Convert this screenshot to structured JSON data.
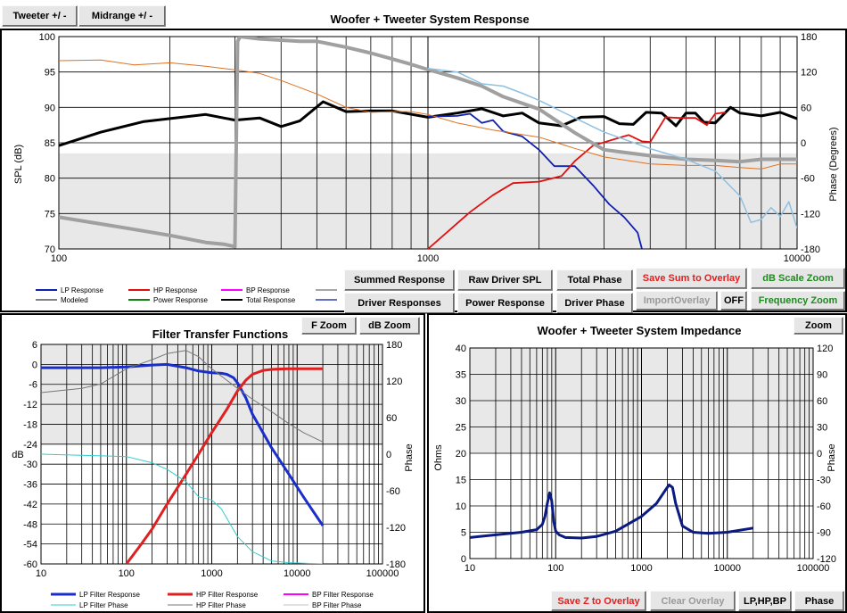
{
  "top_buttons": {
    "tweeter": "Tweeter +/ -",
    "midrange": "Midrange  +/ -"
  },
  "system_response": {
    "title": "Woofer + Tweeter    System Response",
    "ylabel": "SPL (dB)",
    "y2label": "Phase (Degrees)",
    "legend": {
      "lp": "LP Response",
      "hp": "HP Response",
      "bp": "BP Response",
      "modeled": "Modeled",
      "power": "Power Response",
      "total": "Total Response"
    },
    "buttons": {
      "summed": "Summed Response",
      "raw": "Raw Driver SPL",
      "total_phase": "Total Phase",
      "save_sum": "Save Sum to Overlay",
      "db_zoom": "dB Scale Zoom",
      "driver_resp": "Driver Responses",
      "power_resp": "Power Response",
      "driver_phase": "Driver Phase",
      "import": "ImportOverlay",
      "off": "OFF",
      "freq_zoom": "Frequency Zoom"
    },
    "colors": {
      "lp": "#1020b0",
      "hp": "#e01010",
      "bp": "#ff00ff",
      "modeled": "#808080",
      "power": "#108010",
      "total": "#000000",
      "power_orange": "#e07020",
      "driver_lightblue": "#90c0e0",
      "driver_gray": "#a0a0a0"
    }
  },
  "filter": {
    "title": "Filter Transfer Functions",
    "ylabel": "dB",
    "y2label": "Phase",
    "buttons": {
      "fzoom": "F Zoom",
      "dbzoom": "dB Zoom"
    },
    "legend": {
      "lp": "LP Filter Response",
      "hp": "HP Filter Response",
      "bp": "BP Filter Response",
      "lpp": "LP Filter Phase",
      "hpp": "HP Filter Phase",
      "bpp": "BP Filter Phase"
    }
  },
  "impedance": {
    "title": "Woofer + Tweeter    System Impedance",
    "ylabel": "Ohms",
    "y2label": "Phase",
    "buttons": {
      "zoom": "Zoom",
      "save_z": "Save Z to Overlay",
      "clear": "Clear Overlay",
      "lphpbp": "LP,HP,BP",
      "phase": "Phase"
    }
  },
  "chart_data": [
    {
      "type": "line",
      "title": "Woofer + Tweeter    System Response",
      "xlabel": "",
      "ylabel": "SPL (dB)",
      "y2label": "Phase (Degrees)",
      "xscale": "log",
      "xlim": [
        100,
        10000
      ],
      "ylim": [
        70,
        100
      ],
      "y2lim": [
        -180,
        180
      ],
      "x_ticks": [
        "100",
        "1000",
        "10000"
      ],
      "y_ticks": [
        "70",
        "75",
        "80",
        "85",
        "90",
        "95",
        "100"
      ],
      "y2_ticks": [
        "-180",
        "-120",
        "-60",
        "0",
        "60",
        "120",
        "180"
      ],
      "series": [
        {
          "name": "Total Response",
          "axis": "left",
          "color": "#000000",
          "x": [
            100,
            130,
            170,
            250,
            300,
            350,
            400,
            450,
            520,
            600,
            700,
            800,
            1000,
            1200,
            1400,
            1600,
            1800,
            2000,
            2300,
            2600,
            3000,
            3300,
            3600,
            3900,
            4300,
            4700,
            5000,
            5300,
            5600,
            6000,
            6600,
            7000,
            8000,
            9000,
            10000
          ],
          "y": [
            84.6,
            86.5,
            88,
            89,
            88.2,
            88.5,
            87.3,
            88.1,
            90.8,
            89.4,
            89.5,
            89.5,
            88.6,
            89.2,
            89.8,
            88.8,
            89.2,
            87.8,
            87.4,
            88.6,
            88.7,
            87.7,
            87.6,
            89.3,
            89.2,
            87.4,
            89.2,
            89.2,
            87.9,
            87.8,
            90,
            89.2,
            88.8,
            89.3,
            88.4
          ]
        },
        {
          "name": "LP Response",
          "axis": "left",
          "color": "#1020b0",
          "x": [
            1000,
            1200,
            1300,
            1400,
            1500,
            1600,
            1800,
            2000,
            2200,
            2500,
            2800,
            3100,
            3400,
            3700,
            3800
          ],
          "y": [
            88.7,
            88.8,
            89.1,
            87.8,
            88.2,
            86.6,
            85.9,
            84,
            81.7,
            81.7,
            79,
            76.3,
            74.5,
            72.3,
            70
          ]
        },
        {
          "name": "HP Response",
          "axis": "left",
          "color": "#e01010",
          "x": [
            1000,
            1300,
            1500,
            1700,
            2000,
            2300,
            2500,
            2800,
            3200,
            3500,
            3800,
            4000,
            4400,
            4800,
            5300,
            5700,
            6000,
            6400
          ],
          "y": [
            70,
            75.2,
            77.6,
            79.3,
            79.5,
            80.3,
            82.4,
            84.6,
            85.5,
            86.1,
            85.2,
            85.1,
            88.6,
            88.5,
            88.5,
            87.5,
            89.1,
            89.3
          ]
        },
        {
          "name": "Power Response",
          "axis": "left",
          "color": "#e07020",
          "x": [
            100,
            130,
            160,
            200,
            250,
            300,
            350,
            400,
            500,
            600,
            700,
            800,
            900,
            1000,
            1200,
            1500,
            2000,
            2500,
            3000,
            4000,
            5000,
            6000,
            7000,
            8000,
            9000,
            10000
          ],
          "y": [
            96.6,
            96.7,
            96,
            96.3,
            95.8,
            95.3,
            94.8,
            93.8,
            91.9,
            90,
            89.3,
            89.4,
            89.4,
            89,
            87.8,
            86.8,
            85.8,
            84.2,
            83,
            82,
            81.8,
            81.8,
            81.5,
            81.3,
            82,
            82
          ]
        },
        {
          "name": "Modeled",
          "axis": "right",
          "color": "#a0a0a0",
          "x": [
            100,
            150,
            200,
            250,
            280,
            300,
            305,
            310,
            350,
            400,
            450,
            500,
            600,
            700,
            800,
            900,
            1000,
            1200,
            1400,
            1600,
            2000,
            2500,
            3000,
            4000,
            5000,
            6000,
            7000,
            8000,
            9000,
            10000
          ],
          "y": [
            -126,
            -144,
            -157,
            -169,
            -172,
            -176,
            172,
            180,
            176,
            174,
            172,
            172,
            162,
            152,
            142,
            133,
            124,
            110,
            96,
            78,
            57,
            17,
            -12,
            -22,
            -28,
            -30,
            -32,
            -28,
            -28,
            -28
          ]
        },
        {
          "name": "Driver Phase",
          "axis": "right",
          "color": "#90c0e0",
          "x": [
            1000,
            1200,
            1400,
            1600,
            1800,
            2000,
            2500,
            3000,
            4000,
            5000,
            6000,
            7000,
            7500,
            8000,
            8500,
            9000,
            9500,
            10000
          ],
          "y": [
            126,
            120,
            100,
            96,
            84,
            72,
            42,
            18,
            -10,
            -28,
            -48,
            -90,
            -135,
            -130,
            -110,
            -125,
            -100,
            -145
          ]
        }
      ]
    },
    {
      "type": "line",
      "title": "Filter Transfer Functions",
      "xlabel": "",
      "ylabel": "dB",
      "y2label": "Phase",
      "xscale": "log",
      "xlim": [
        10,
        100000
      ],
      "ylim": [
        -60,
        6
      ],
      "y2lim": [
        -180,
        180
      ],
      "x_ticks": [
        "10",
        "100",
        "1000",
        "10000",
        "100000"
      ],
      "y_ticks": [
        "6",
        "0",
        "-6",
        "-12",
        "-18",
        "-24",
        "-30",
        "-36",
        "-42",
        "-48",
        "-54",
        "-60"
      ],
      "y2_ticks": [
        "180",
        "120",
        "60",
        "0",
        "-60",
        "-120",
        "-180"
      ],
      "series": [
        {
          "name": "LP Filter Response",
          "axis": "left",
          "color": "#1a2ecc",
          "x": [
            10,
            50,
            100,
            200,
            300,
            500,
            700,
            1000,
            1300,
            1500,
            1800,
            2000,
            2500,
            3000,
            5000,
            8000,
            12000,
            20000
          ],
          "y": [
            -1,
            -1,
            -0.8,
            -0.2,
            0,
            -1,
            -2,
            -2.5,
            -2.7,
            -3,
            -4,
            -5.5,
            -10,
            -15,
            -25,
            -33,
            -40,
            -48.5
          ]
        },
        {
          "name": "HP Filter Response",
          "axis": "left",
          "color": "#e02020",
          "x": [
            100,
            150,
            200,
            300,
            500,
            700,
            1000,
            1500,
            2000,
            2500,
            3000,
            4000,
            5000,
            6000,
            8000,
            12000,
            20000
          ],
          "y": [
            -60,
            -54,
            -49.5,
            -42,
            -33,
            -27,
            -20.5,
            -13.5,
            -8,
            -4.8,
            -3,
            -1.8,
            -1.5,
            -1.4,
            -1.3,
            -1.3,
            -1.3
          ]
        },
        {
          "name": "LP Filter Phase",
          "axis": "right",
          "color": "#33cccc",
          "x": [
            10,
            100,
            200,
            300,
            500,
            700,
            1000,
            1300,
            2000,
            3000,
            5000,
            8000,
            12000,
            20000
          ],
          "y": [
            0,
            -4,
            -14,
            -25,
            -45,
            -70,
            -75,
            -90,
            -135,
            -160,
            -175,
            -178,
            -179,
            -180
          ]
        },
        {
          "name": "HP Filter Phase",
          "axis": "right",
          "color": "#777777",
          "x": [
            10,
            30,
            50,
            100,
            200,
            300,
            500,
            700,
            1000,
            2000,
            3000,
            5000,
            8000,
            12000,
            20000
          ],
          "y": [
            101,
            108,
            115,
            140,
            155,
            165,
            170,
            160,
            140,
            108,
            90,
            70,
            50,
            35,
            20
          ]
        }
      ]
    },
    {
      "type": "line",
      "title": "Woofer + Tweeter    System Impedance",
      "xlabel": "",
      "ylabel": "Ohms",
      "y2label": "Phase",
      "xscale": "log",
      "xlim": [
        10,
        100000
      ],
      "ylim": [
        0,
        40
      ],
      "y2lim": [
        -120,
        120
      ],
      "x_ticks": [
        "10",
        "100",
        "1000",
        "10000",
        "100000"
      ],
      "y_ticks": [
        "0",
        "5",
        "10",
        "15",
        "20",
        "25",
        "30",
        "35",
        "40"
      ],
      "y2_ticks": [
        "-120",
        "-90",
        "-60",
        "-30",
        "0",
        "30",
        "60",
        "90",
        "120"
      ],
      "series": [
        {
          "name": "Impedance",
          "axis": "left",
          "color": "#0a1a80",
          "x": [
            10,
            20,
            40,
            60,
            70,
            75,
            80,
            85,
            90,
            95,
            100,
            110,
            130,
            200,
            300,
            500,
            1000,
            1500,
            1900,
            2100,
            2300,
            2500,
            3000,
            4000,
            6000,
            10000,
            20000
          ],
          "y": [
            4,
            4.5,
            5,
            5.5,
            6.5,
            8,
            10.5,
            12.5,
            11,
            7,
            5.2,
            4.5,
            4,
            3.9,
            4.2,
            5.2,
            8,
            10.5,
            13,
            14,
            13.5,
            10.5,
            6.2,
            5,
            4.8,
            5,
            5.8
          ]
        }
      ]
    }
  ]
}
